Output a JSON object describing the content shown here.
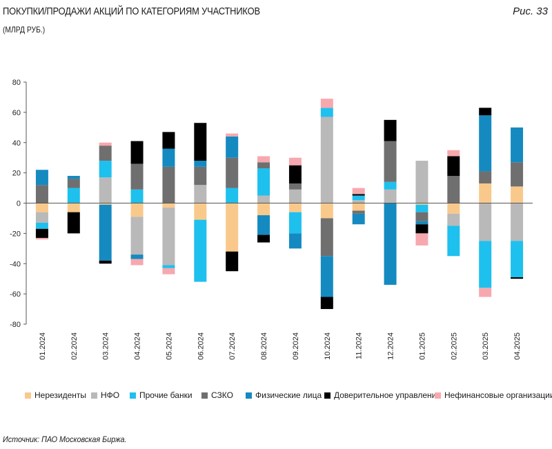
{
  "header": {
    "title": "ПОКУПКИ/ПРОДАЖИ АКЦИЙ ПО КАТЕГОРИЯМ УЧАСТНИКОВ",
    "subtitle": "(МЛРД РУБ.)",
    "figure_label": "Рис. 33"
  },
  "footer": {
    "source": "Источник: ПАО Московская Биржа."
  },
  "chart_data": {
    "type": "bar",
    "stacked": true,
    "categories": [
      "01.2024",
      "02.2024",
      "03.2024",
      "04.2024",
      "05.2024",
      "06.2024",
      "07.2024",
      "08.2024",
      "09.2024",
      "10.2024",
      "11.2024",
      "12.2024",
      "01.2025",
      "02.2025",
      "03.2025",
      "04.2025"
    ],
    "ylim": [
      -80,
      80
    ],
    "yticks": [
      80,
      60,
      40,
      20,
      0,
      -20,
      -40,
      -60,
      -80
    ],
    "grid": false,
    "legend_position": "bottom",
    "series": [
      {
        "name": "Нерезиденты",
        "color": "#F9C98B",
        "values": [
          -6,
          -6,
          -1,
          -9,
          -3,
          -11,
          -32,
          -8,
          -6,
          -10,
          -5,
          0,
          -1,
          -7,
          13,
          11
        ]
      },
      {
        "name": "НФО",
        "color": "#B9B9B9",
        "values": [
          -7,
          0,
          17,
          -25,
          -38,
          12,
          0,
          5,
          9,
          57,
          2,
          9,
          28,
          -8,
          -25,
          -25
        ]
      },
      {
        "name": "Прочие банки",
        "color": "#1EC0EE",
        "values": [
          -4,
          10,
          11,
          9,
          -2,
          -41,
          10,
          18,
          -14,
          6,
          3,
          5,
          -5,
          -20,
          -31,
          -24
        ]
      },
      {
        "name": "СЗКО",
        "color": "#6F6F6F",
        "values": [
          12,
          6,
          10,
          17,
          24,
          12,
          20,
          4,
          4,
          -25,
          -2,
          27,
          -6,
          18,
          8,
          16
        ]
      },
      {
        "name": "Физические лица",
        "color": "#158AC0",
        "values": [
          10,
          2,
          -37,
          -3,
          12,
          4,
          14,
          -13,
          -10,
          -27,
          -7,
          -54,
          -2,
          0,
          37,
          23
        ]
      },
      {
        "name": "Доверительное управление",
        "color": "#000000",
        "values": [
          -6,
          -14,
          -2,
          15,
          11,
          25,
          -13,
          -5,
          12,
          -8,
          1,
          14,
          -6,
          13,
          5,
          -1
        ]
      },
      {
        "name": "Нефинансовые организации",
        "color": "#F7A8AE",
        "values": [
          -1,
          0,
          2,
          -4,
          -4,
          0,
          2,
          4,
          5,
          6,
          4,
          0,
          -8,
          4,
          -6,
          0
        ]
      }
    ]
  }
}
